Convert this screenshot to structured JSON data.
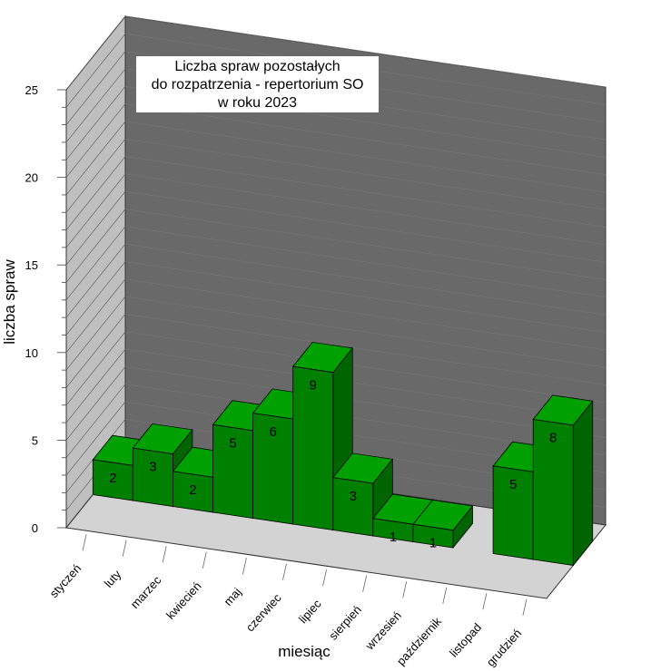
{
  "chart_data": {
    "type": "bar",
    "title_lines": [
      "Liczba spraw pozostałych",
      "do rozpatrzenia - repertorium SO",
      "w roku 2023"
    ],
    "xlabel": "miesiąc",
    "ylabel": "liczba spraw",
    "ylim": [
      0,
      25
    ],
    "yticks": [
      "0",
      "5",
      "10",
      "15",
      "20",
      "25"
    ],
    "categories": [
      "styczeń",
      "luty",
      "marzec",
      "kwiecień",
      "maj",
      "czerwiec",
      "lipiec",
      "sierpień",
      "wrzesień",
      "październik",
      "listopad",
      "grudzień"
    ],
    "values": [
      2,
      3,
      2,
      5,
      6,
      9,
      3,
      1,
      1,
      null,
      5,
      8
    ],
    "data_labels": [
      "2",
      "3",
      "2",
      "5",
      "6",
      "9",
      "3",
      "1",
      "1",
      "",
      "5",
      "8"
    ],
    "style": "3d",
    "colors": {
      "bar_front": "#008000",
      "bar_side": "#006400",
      "bar_top": "#00a000",
      "back_wall": "#696969",
      "side_wall": "#bfbfbf",
      "floor": "#d3d3d3"
    }
  }
}
